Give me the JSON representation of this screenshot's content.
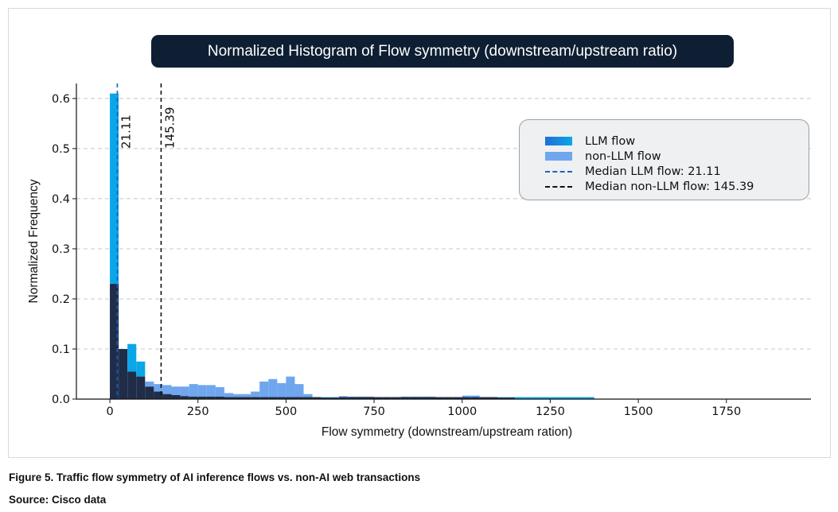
{
  "chart_data": {
    "type": "bar",
    "title": "Normalized Histogram of Flow symmetry (downstream/upstream ratio)",
    "xlabel": "Flow symmetry (downstream/upstream ration)",
    "ylabel": "Normalized Frequency",
    "xlim": [
      -95,
      1990
    ],
    "ylim": [
      0,
      0.63
    ],
    "xticks": [
      0,
      250,
      500,
      750,
      1000,
      1250,
      1500,
      1750
    ],
    "yticks": [
      0.0,
      0.1,
      0.2,
      0.3,
      0.4,
      0.5,
      0.6
    ],
    "ytick_labels": [
      "0.0",
      "0.1",
      "0.2",
      "0.3",
      "0.4",
      "0.5",
      "0.6"
    ],
    "grid": "horizontal dashed",
    "legend_position": "top-right",
    "bin_width": 25,
    "bin_start": 0,
    "series": [
      {
        "name": "LLM flow",
        "color": "#0aa6e8",
        "values": [
          0.61,
          0.1,
          0.11,
          0.075,
          0.025,
          0.015,
          0.01,
          0.008,
          0.006,
          0.005,
          0.005,
          0.005,
          0.005,
          0.004,
          0.004,
          0.004,
          0.004,
          0.004,
          0.004,
          0.004,
          0.004,
          0.004,
          0.004,
          0.004,
          0.004,
          0.004,
          0.004,
          0.004,
          0.004,
          0.004,
          0.004,
          0.004,
          0.004,
          0.004,
          0.004,
          0.004,
          0.004,
          0.004,
          0.004,
          0.004,
          0.004,
          0.004,
          0.004,
          0.004,
          0.004,
          0.004,
          0.004,
          0.004,
          0.004,
          0.004,
          0.004,
          0.004,
          0.004,
          0.004,
          0.004
        ]
      },
      {
        "name": "non-LLM flow",
        "color": "#6fa6ee",
        "values": [
          0.23,
          0.1,
          0.055,
          0.045,
          0.035,
          0.03,
          0.028,
          0.025,
          0.025,
          0.03,
          0.028,
          0.028,
          0.024,
          0.012,
          0.01,
          0.01,
          0.015,
          0.035,
          0.04,
          0.032,
          0.045,
          0.03,
          0.01,
          0.004,
          0.003,
          0.003,
          0.006,
          0.005,
          0.005,
          0.005,
          0.004,
          0.004,
          0.004,
          0.005,
          0.005,
          0.005,
          0.005,
          0.004,
          0.004,
          0.004,
          0.007,
          0.007,
          0.004,
          0.004,
          0.003,
          0.003
        ]
      }
    ],
    "overlap_color": "#1f2d48",
    "medians": [
      {
        "name": "Median LLM flow: 21.11",
        "label": "21.11",
        "value": 21.11,
        "color": "#1f5fc4"
      },
      {
        "name": "Median non-LLM flow: 145.39",
        "label": "145.39",
        "value": 145.39,
        "color": "#111111"
      }
    ]
  },
  "legend": {
    "llm": "LLM flow",
    "non_llm": "non-LLM flow",
    "median_llm": "Median LLM flow: 21.11",
    "median_non_llm": "Median non-LLM flow: 145.39"
  },
  "caption": "Figure 5. Traffic flow symmetry of AI inference flows vs. non-AI web transactions",
  "source": "Source: Cisco data"
}
